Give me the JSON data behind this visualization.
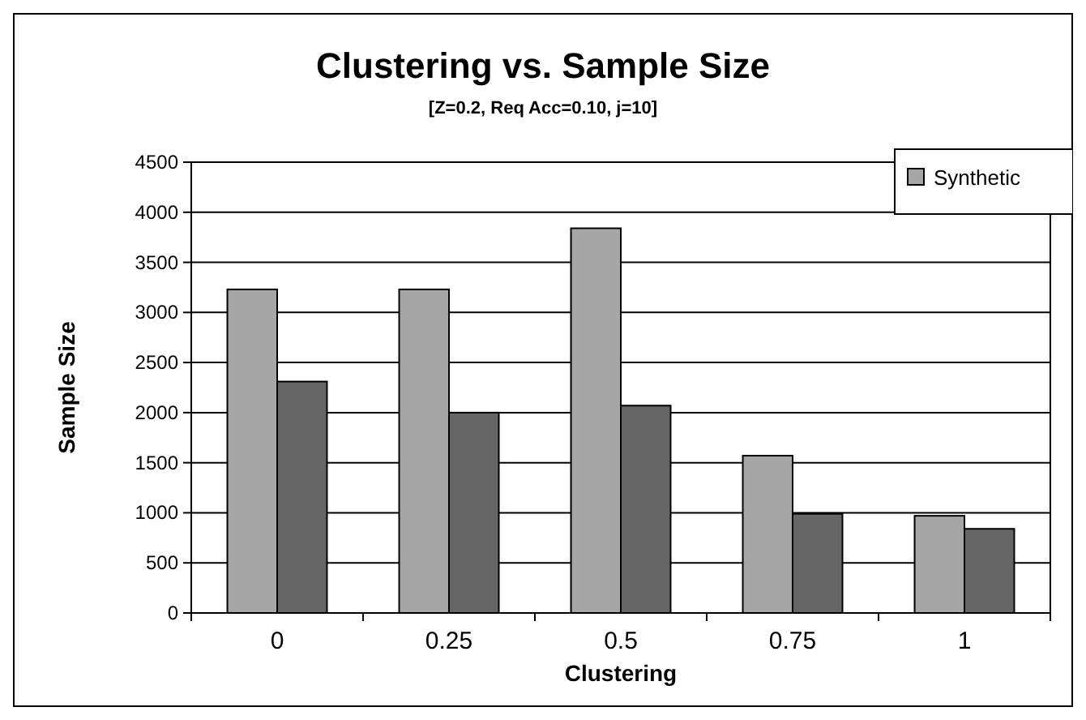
{
  "chart_data": {
    "type": "bar",
    "title": "Clustering vs. Sample Size",
    "subtitle": "[Z=0.2, Req Acc=0.10, j=10]",
    "xlabel": "Clustering",
    "ylabel": "Sample Size",
    "categories": [
      "0",
      "0.25",
      "0.5",
      "0.75",
      "1"
    ],
    "series": [
      {
        "name": "Synthetic",
        "color": "#a6a6a6",
        "values": [
          3230,
          3230,
          3840,
          1570,
          970
        ]
      },
      {
        "color": "#666666",
        "values": [
          2310,
          2000,
          2070,
          990,
          840
        ]
      }
    ],
    "ylim": [
      0,
      4500
    ],
    "yticks": [
      0,
      500,
      1000,
      1500,
      2000,
      2500,
      3000,
      3500,
      4000,
      4500
    ],
    "grid": "y",
    "legend": "top right"
  }
}
